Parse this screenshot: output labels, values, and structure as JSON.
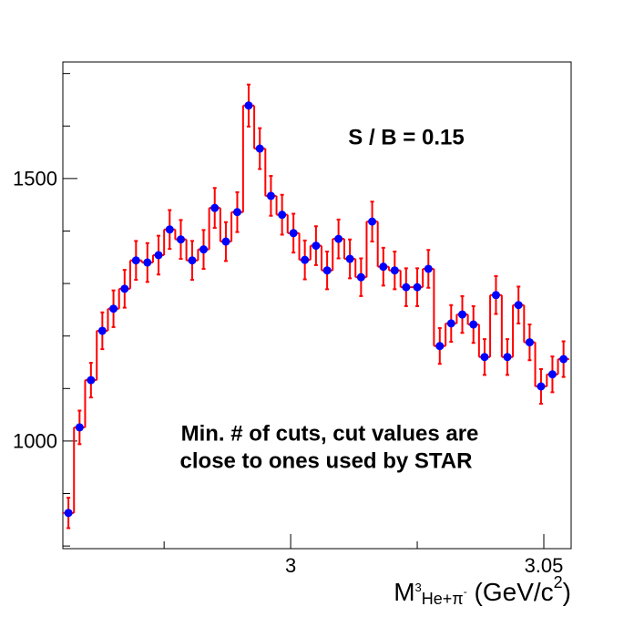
{
  "chart_data": {
    "type": "histogram",
    "bins": [
      2.955,
      2.9572,
      2.9594,
      2.9617,
      2.9639,
      2.9661,
      2.9683,
      2.9706,
      2.9728,
      2.975,
      2.9772,
      2.9794,
      2.9817,
      2.9839,
      2.9861,
      2.9883,
      2.9906,
      2.9928,
      2.995,
      2.9972,
      2.9994,
      3.0017,
      3.0039,
      3.0061,
      3.0083,
      3.0106,
      3.0128,
      3.015,
      3.0172,
      3.0194,
      3.0217,
      3.0239,
      3.0261,
      3.0283,
      3.0306,
      3.0328,
      3.035,
      3.0372,
      3.0394,
      3.0417,
      3.0439,
      3.0461,
      3.0483,
      3.0506,
      3.0528,
      3.055
    ],
    "values": [
      863,
      1026,
      1116,
      1210,
      1252,
      1290,
      1344,
      1340,
      1354,
      1403,
      1384,
      1344,
      1365,
      1444,
      1380,
      1436,
      1639,
      1557,
      1467,
      1431,
      1396,
      1345,
      1372,
      1325,
      1385,
      1347,
      1312,
      1418,
      1332,
      1325,
      1293,
      1293,
      1328,
      1181,
      1224,
      1241,
      1222,
      1160,
      1278,
      1160,
      1259,
      1188,
      1104,
      1127,
      1156
    ],
    "errors": [
      29,
      32,
      33,
      35,
      35,
      36,
      37,
      37,
      37,
      37,
      37,
      37,
      37,
      38,
      37,
      38,
      40,
      39,
      38,
      38,
      37,
      37,
      37,
      36,
      37,
      37,
      36,
      38,
      36,
      36,
      36,
      36,
      36,
      34,
      35,
      35,
      35,
      34,
      36,
      34,
      35,
      34,
      33,
      34,
      34
    ],
    "line_color": "#ff0000",
    "marker_color": "#0000ff",
    "xlim": [
      2.955,
      3.0554
    ],
    "xticks": [
      3,
      3.05
    ],
    "xminorticks": [
      2.975,
      3.025
    ],
    "ylim": [
      795,
      1722
    ],
    "yticks": [
      1000,
      1500
    ],
    "yminorticks": [
      800,
      900,
      1100,
      1200,
      1300,
      1400,
      1600,
      1700
    ],
    "x_label": [
      "M",
      "3",
      "He+π",
      "-",
      " (GeV/c",
      "2",
      ")"
    ],
    "annotations": [
      "S / B = 0.15",
      "Min. # of cuts, cut values are",
      "close to ones used by STAR"
    ]
  }
}
